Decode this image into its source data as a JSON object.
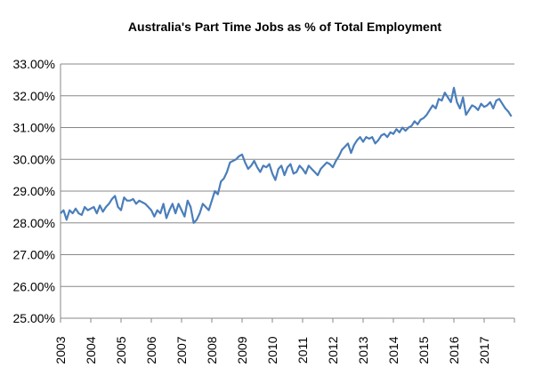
{
  "chart_data": {
    "type": "line",
    "title": "Australia's Part Time Jobs as % of Total Employment",
    "xlabel": "",
    "ylabel": "",
    "ylim": [
      25,
      33
    ],
    "xlim": [
      2003,
      2018
    ],
    "y_ticks": [
      "25.00%",
      "26.00%",
      "27.00%",
      "28.00%",
      "29.00%",
      "30.00%",
      "31.00%",
      "32.00%",
      "33.00%"
    ],
    "x_ticks": [
      "2003",
      "2004",
      "2005",
      "2006",
      "2007",
      "2008",
      "2009",
      "2010",
      "2011",
      "2012",
      "2013",
      "2014",
      "2015",
      "2016",
      "2017"
    ],
    "grid": true,
    "legend": "none",
    "colors": {
      "line": "#4a7ebb",
      "grid": "#888888",
      "axis": "#888888"
    },
    "series": [
      {
        "x": [
          2003.0,
          2003.1,
          2003.2,
          2003.3,
          2003.4,
          2003.5,
          2003.6,
          2003.7,
          2003.8,
          2003.9,
          2004.0,
          2004.1,
          2004.2,
          2004.3,
          2004.4,
          2004.5,
          2004.6,
          2004.7,
          2004.8,
          2004.9,
          2005.0,
          2005.1,
          2005.2,
          2005.3,
          2005.4,
          2005.5,
          2005.6,
          2005.7,
          2005.8,
          2005.9,
          2006.0,
          2006.1,
          2006.2,
          2006.3,
          2006.4,
          2006.5,
          2006.6,
          2006.7,
          2006.8,
          2006.9,
          2007.0,
          2007.1,
          2007.2,
          2007.3,
          2007.4,
          2007.5,
          2007.6,
          2007.7,
          2007.8,
          2007.9,
          2008.0,
          2008.1,
          2008.2,
          2008.3,
          2008.4,
          2008.5,
          2008.6,
          2008.7,
          2008.8,
          2008.9,
          2009.0,
          2009.1,
          2009.2,
          2009.3,
          2009.4,
          2009.5,
          2009.6,
          2009.7,
          2009.8,
          2009.9,
          2010.0,
          2010.1,
          2010.2,
          2010.3,
          2010.4,
          2010.5,
          2010.6,
          2010.7,
          2010.8,
          2010.9,
          2011.0,
          2011.1,
          2011.2,
          2011.3,
          2011.4,
          2011.5,
          2011.6,
          2011.7,
          2011.8,
          2011.9,
          2012.0,
          2012.1,
          2012.2,
          2012.3,
          2012.4,
          2012.5,
          2012.6,
          2012.7,
          2012.8,
          2012.9,
          2013.0,
          2013.1,
          2013.2,
          2013.3,
          2013.4,
          2013.5,
          2013.6,
          2013.7,
          2013.8,
          2013.9,
          2014.0,
          2014.1,
          2014.2,
          2014.3,
          2014.4,
          2014.5,
          2014.6,
          2014.7,
          2014.8,
          2014.9,
          2015.0,
          2015.1,
          2015.2,
          2015.3,
          2015.4,
          2015.5,
          2015.6,
          2015.7,
          2015.8,
          2015.9,
          2016.0,
          2016.1,
          2016.2,
          2016.3,
          2016.4,
          2016.5,
          2016.6,
          2016.7,
          2016.8,
          2016.9,
          2017.0,
          2017.1,
          2017.2,
          2017.3,
          2017.4,
          2017.5,
          2017.6,
          2017.7,
          2017.8,
          2017.9
        ],
        "values": [
          28.3,
          28.4,
          28.1,
          28.4,
          28.3,
          28.45,
          28.3,
          28.25,
          28.5,
          28.4,
          28.45,
          28.5,
          28.3,
          28.55,
          28.35,
          28.5,
          28.6,
          28.75,
          28.85,
          28.5,
          28.4,
          28.8,
          28.7,
          28.7,
          28.75,
          28.6,
          28.7,
          28.65,
          28.6,
          28.5,
          28.4,
          28.2,
          28.4,
          28.3,
          28.6,
          28.15,
          28.4,
          28.6,
          28.3,
          28.6,
          28.4,
          28.2,
          28.7,
          28.5,
          28.0,
          28.1,
          28.3,
          28.6,
          28.5,
          28.4,
          28.7,
          29.0,
          28.9,
          29.3,
          29.4,
          29.6,
          29.9,
          29.95,
          30.0,
          30.1,
          30.15,
          29.9,
          29.7,
          29.8,
          29.95,
          29.75,
          29.6,
          29.8,
          29.75,
          29.85,
          29.55,
          29.35,
          29.7,
          29.8,
          29.5,
          29.75,
          29.85,
          29.55,
          29.6,
          29.8,
          29.7,
          29.55,
          29.8,
          29.7,
          29.6,
          29.5,
          29.7,
          29.8,
          29.9,
          29.85,
          29.75,
          29.95,
          30.1,
          30.3,
          30.4,
          30.5,
          30.2,
          30.45,
          30.6,
          30.7,
          30.55,
          30.7,
          30.65,
          30.7,
          30.5,
          30.6,
          30.75,
          30.8,
          30.7,
          30.85,
          30.8,
          30.95,
          30.85,
          31.0,
          30.9,
          31.0,
          31.05,
          31.2,
          31.1,
          31.25,
          31.3,
          31.4,
          31.55,
          31.7,
          31.6,
          31.9,
          31.85,
          32.1,
          31.95,
          31.8,
          32.25,
          31.8,
          31.6,
          31.95,
          31.4,
          31.55,
          31.7,
          31.65,
          31.55,
          31.75,
          31.65,
          31.7,
          31.8,
          31.6,
          31.85,
          31.9,
          31.75,
          31.6,
          31.5,
          31.35
        ]
      }
    ]
  }
}
